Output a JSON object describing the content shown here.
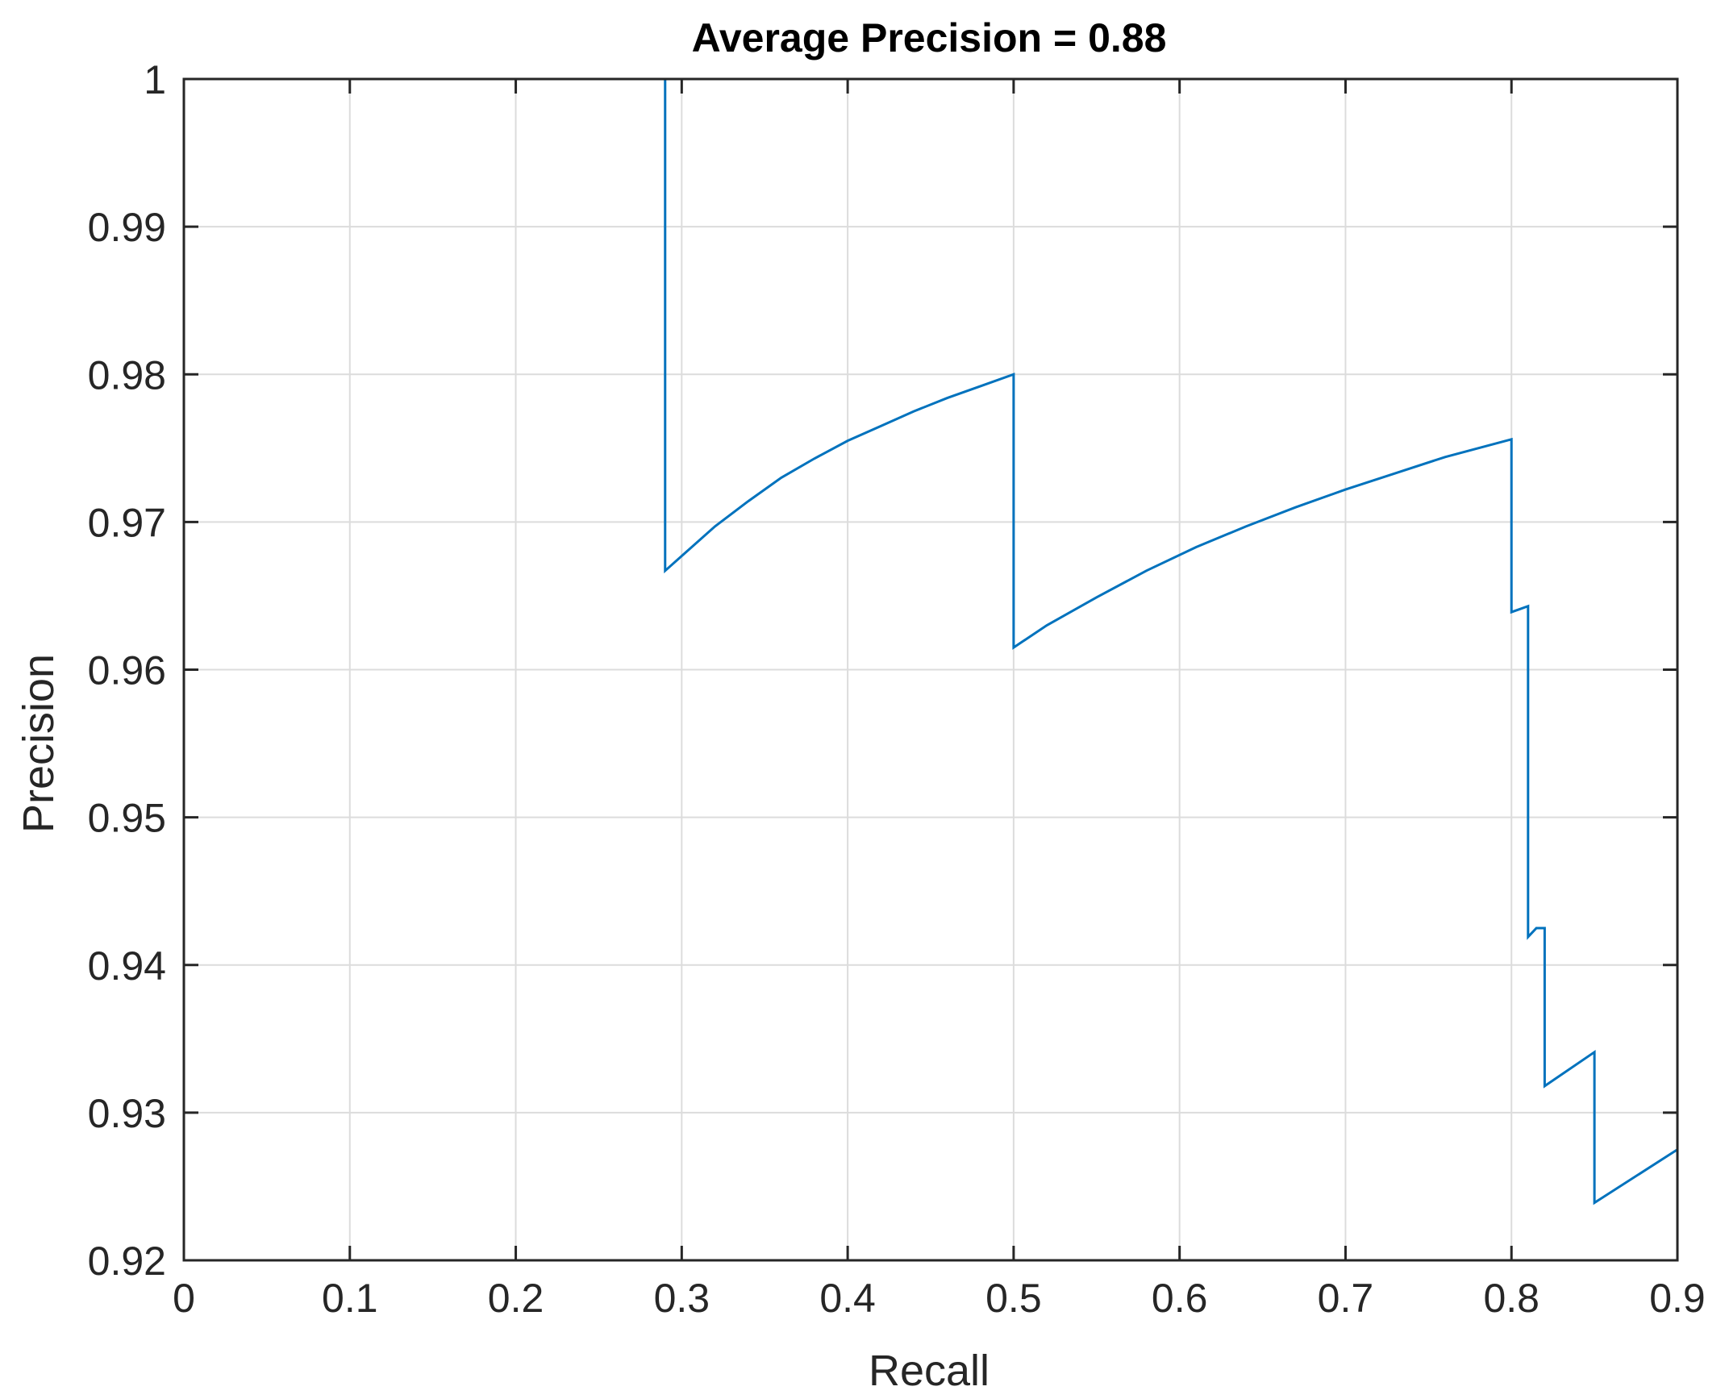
{
  "chart_data": {
    "type": "line",
    "title": "Average Precision = 0.88",
    "xlabel": "Recall",
    "ylabel": "Precision",
    "xlim": [
      0,
      0.9
    ],
    "ylim": [
      0.92,
      1
    ],
    "grid": true,
    "x_ticks": [
      0,
      0.1,
      0.2,
      0.3,
      0.4,
      0.5,
      0.6,
      0.7,
      0.8,
      0.9
    ],
    "x_tick_labels": [
      "0",
      "0.1",
      "0.2",
      "0.3",
      "0.4",
      "0.5",
      "0.6",
      "0.7",
      "0.8",
      "0.9"
    ],
    "y_ticks": [
      0.92,
      0.93,
      0.94,
      0.95,
      0.96,
      0.97,
      0.98,
      0.99,
      1
    ],
    "y_tick_labels": [
      "0.92",
      "0.93",
      "0.94",
      "0.95",
      "0.96",
      "0.97",
      "0.98",
      "0.99",
      "1"
    ],
    "line_color": "#0072bd",
    "series": [
      {
        "x": [
          0,
          0.29,
          0.29,
          0.3,
          0.32,
          0.34,
          0.36,
          0.38,
          0.4,
          0.42,
          0.44,
          0.46,
          0.48,
          0.5,
          0.5,
          0.52,
          0.55,
          0.58,
          0.61,
          0.64,
          0.67,
          0.7,
          0.73,
          0.76,
          0.8,
          0.8,
          0.805,
          0.81,
          0.81,
          0.815,
          0.82,
          0.82,
          0.85,
          0.85,
          0.9
        ],
        "y": [
          1,
          1,
          0.9667,
          0.9677,
          0.9697,
          0.9714,
          0.973,
          0.9743,
          0.9755,
          0.9765,
          0.9775,
          0.9784,
          0.9792,
          0.98,
          0.9615,
          0.963,
          0.9649,
          0.9667,
          0.9683,
          0.9697,
          0.971,
          0.9722,
          0.9733,
          0.9744,
          0.9756,
          0.9639,
          0.9641,
          0.9643,
          0.9419,
          0.9425,
          0.9425,
          0.9318,
          0.9341,
          0.9239,
          0.9275
        ]
      }
    ]
  }
}
